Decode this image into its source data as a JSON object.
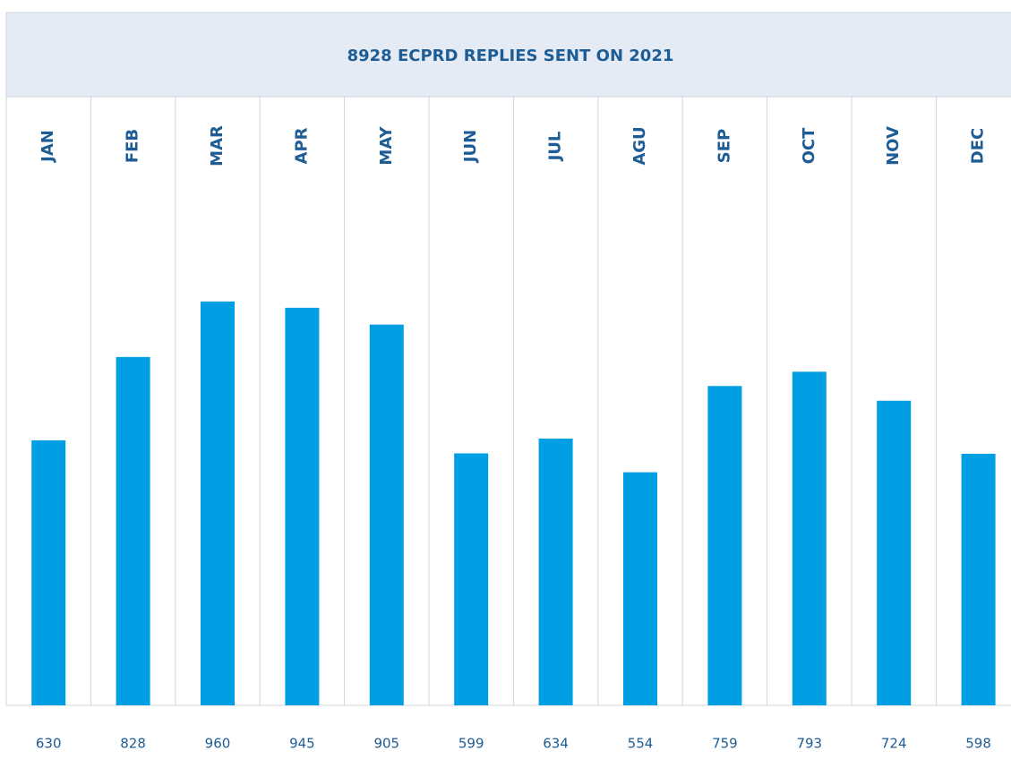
{
  "chart_data": {
    "type": "bar",
    "title": "8928 ECPRD REPLIES SENT ON 2021",
    "categories": [
      "JAN",
      "FEB",
      "MAR",
      "APR",
      "MAY",
      "JUN",
      "JUL",
      "AGU",
      "SEP",
      "OCT",
      "NOV",
      "DEC"
    ],
    "values": [
      630,
      828,
      960,
      945,
      905,
      599,
      634,
      554,
      759,
      793,
      724,
      598
    ],
    "color": "#009fe3"
  }
}
